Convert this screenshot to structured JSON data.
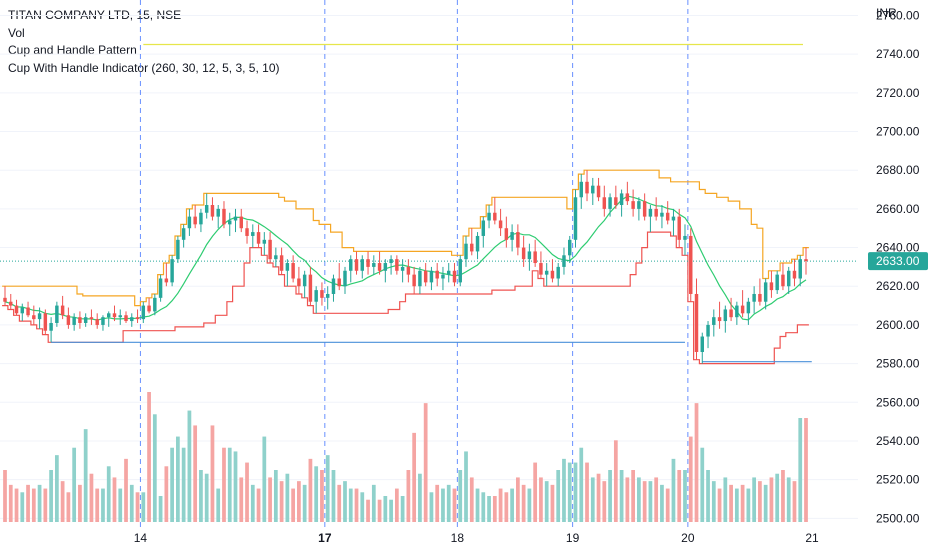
{
  "legend": {
    "symbol": "TITAN COMPANY LTD, 15, NSE",
    "vol": "Vol",
    "pattern": "Cup and Handle Pattern",
    "indicator": "Cup With Handle Indicator (260, 30, 12, 5, 3, 5, 10)"
  },
  "currency": "INR",
  "current_price_label": "2633.00",
  "colors": {
    "up": "#26a69a",
    "down": "#ef5350",
    "vol_up": "#8fd1cb",
    "vol_down": "#f5a5a3",
    "resistance": "#f5a623",
    "support_red": "#ef5350",
    "ma": "#2ecc71",
    "cup_low": "#4a90d9",
    "yellow_line": "#e6e64a",
    "session": "#2962ff"
  },
  "chart_data": {
    "type": "candlestick",
    "y_ticks": [
      "2500.00",
      "2520.00",
      "2540.00",
      "2560.00",
      "2580.00",
      "2600.00",
      "2620.00",
      "2640.00",
      "2660.00",
      "2680.00",
      "2700.00",
      "2720.00",
      "2740.00",
      "2760.00"
    ],
    "y_range": [
      2495,
      2768
    ],
    "x_labels": [
      {
        "label": "14",
        "bold": false
      },
      {
        "label": "17",
        "bold": true
      },
      {
        "label": "18",
        "bold": false
      },
      {
        "label": "19",
        "bold": false
      },
      {
        "label": "20",
        "bold": false
      },
      {
        "label": "21",
        "bold": false
      }
    ],
    "current_price": 2633.0,
    "yellow_level": 2745.0,
    "candles": [
      [
        2614,
        2620,
        2610,
        2612,
        14
      ],
      [
        2612,
        2616,
        2608,
        2610,
        10
      ],
      [
        2610,
        2613,
        2605,
        2606,
        9
      ],
      [
        2606,
        2611,
        2602,
        2609,
        8
      ],
      [
        2609,
        2612,
        2604,
        2605,
        10
      ],
      [
        2605,
        2610,
        2600,
        2603,
        9
      ],
      [
        2603,
        2609,
        2598,
        2606,
        10
      ],
      [
        2606,
        2608,
        2595,
        2597,
        9
      ],
      [
        2597,
        2604,
        2591,
        2601,
        14
      ],
      [
        2601,
        2612,
        2599,
        2610,
        18
      ],
      [
        2610,
        2615,
        2603,
        2605,
        11
      ],
      [
        2605,
        2609,
        2598,
        2600,
        8
      ],
      [
        2600,
        2606,
        2597,
        2604,
        20
      ],
      [
        2604,
        2607,
        2598,
        2601,
        10
      ],
      [
        2601,
        2606,
        2599,
        2604,
        25
      ],
      [
        2604,
        2608,
        2600,
        2603,
        13
      ],
      [
        2603,
        2606,
        2598,
        2600,
        9
      ],
      [
        2600,
        2605,
        2597,
        2604,
        9
      ],
      [
        2604,
        2607,
        2599,
        2606,
        15
      ],
      [
        2606,
        2610,
        2602,
        2604,
        12
      ],
      [
        2604,
        2608,
        2600,
        2605,
        9
      ],
      [
        2605,
        2607,
        2601,
        2602,
        17
      ],
      [
        2602,
        2606,
        2599,
        2604,
        10
      ],
      [
        2604,
        2608,
        2601,
        2603,
        8
      ],
      [
        2603,
        2612,
        2601,
        2610,
        8
      ],
      [
        2610,
        2614,
        2606,
        2607,
        35
      ],
      [
        2607,
        2616,
        2605,
        2614,
        29
      ],
      [
        2614,
        2626,
        2612,
        2624,
        7
      ],
      [
        2624,
        2632,
        2620,
        2622,
        15
      ],
      [
        2622,
        2636,
        2620,
        2634,
        20
      ],
      [
        2634,
        2646,
        2632,
        2644,
        23
      ],
      [
        2644,
        2652,
        2640,
        2650,
        20
      ],
      [
        2650,
        2660,
        2646,
        2656,
        30
      ],
      [
        2656,
        2662,
        2650,
        2652,
        26
      ],
      [
        2652,
        2660,
        2648,
        2658,
        14
      ],
      [
        2658,
        2668,
        2655,
        2662,
        13
      ],
      [
        2662,
        2666,
        2654,
        2656,
        26
      ],
      [
        2656,
        2662,
        2650,
        2660,
        9
      ],
      [
        2660,
        2664,
        2650,
        2652,
        20
      ],
      [
        2652,
        2658,
        2646,
        2654,
        20
      ],
      [
        2654,
        2660,
        2648,
        2656,
        19
      ],
      [
        2656,
        2660,
        2648,
        2650,
        12
      ],
      [
        2650,
        2654,
        2642,
        2646,
        16
      ],
      [
        2646,
        2652,
        2640,
        2648,
        10
      ],
      [
        2648,
        2652,
        2640,
        2642,
        9
      ],
      [
        2642,
        2648,
        2636,
        2644,
        23
      ],
      [
        2644,
        2648,
        2632,
        2634,
        12
      ],
      [
        2634,
        2640,
        2630,
        2636,
        14
      ],
      [
        2636,
        2640,
        2626,
        2628,
        11
      ],
      [
        2628,
        2634,
        2620,
        2632,
        13
      ],
      [
        2632,
        2636,
        2622,
        2624,
        9
      ],
      [
        2624,
        2630,
        2616,
        2620,
        11
      ],
      [
        2620,
        2628,
        2614,
        2626,
        10
      ],
      [
        2626,
        2630,
        2610,
        2612,
        17
      ],
      [
        2612,
        2620,
        2606,
        2618,
        15
      ],
      [
        2618,
        2622,
        2610,
        2614,
        14
      ],
      [
        2614,
        2620,
        2608,
        2616,
        18
      ],
      [
        2616,
        2626,
        2612,
        2624,
        14
      ],
      [
        2624,
        2632,
        2618,
        2620,
        10
      ],
      [
        2620,
        2630,
        2616,
        2628,
        11
      ],
      [
        2628,
        2636,
        2622,
        2634,
        9
      ],
      [
        2634,
        2638,
        2626,
        2628,
        9
      ],
      [
        2628,
        2636,
        2624,
        2634,
        8
      ],
      [
        2634,
        2638,
        2626,
        2630,
        6
      ],
      [
        2630,
        2636,
        2626,
        2632,
        10
      ],
      [
        2632,
        2638,
        2626,
        2628,
        6
      ],
      [
        2628,
        2634,
        2622,
        2632,
        7
      ],
      [
        2632,
        2636,
        2626,
        2634,
        6
      ],
      [
        2634,
        2636,
        2626,
        2628,
        9
      ],
      [
        2628,
        2634,
        2622,
        2630,
        7
      ],
      [
        2630,
        2634,
        2622,
        2626,
        14
      ],
      [
        2626,
        2630,
        2616,
        2620,
        24
      ],
      [
        2620,
        2630,
        2616,
        2628,
        13
      ],
      [
        2628,
        2632,
        2620,
        2622,
        32
      ],
      [
        2622,
        2630,
        2618,
        2628,
        8
      ],
      [
        2628,
        2632,
        2620,
        2624,
        10
      ],
      [
        2624,
        2630,
        2618,
        2626,
        9
      ],
      [
        2626,
        2632,
        2622,
        2628,
        10
      ],
      [
        2628,
        2632,
        2620,
        2622,
        9
      ],
      [
        2622,
        2636,
        2620,
        2634,
        14
      ],
      [
        2634,
        2646,
        2630,
        2642,
        19
      ],
      [
        2642,
        2650,
        2636,
        2638,
        12
      ],
      [
        2638,
        2648,
        2634,
        2646,
        9
      ],
      [
        2646,
        2656,
        2640,
        2654,
        8
      ],
      [
        2654,
        2662,
        2650,
        2658,
        7
      ],
      [
        2658,
        2666,
        2652,
        2654,
        7
      ],
      [
        2654,
        2660,
        2646,
        2650,
        9
      ],
      [
        2650,
        2656,
        2640,
        2644,
        8
      ],
      [
        2644,
        2652,
        2638,
        2648,
        9
      ],
      [
        2648,
        2652,
        2636,
        2640,
        12
      ],
      [
        2640,
        2646,
        2630,
        2634,
        10
      ],
      [
        2634,
        2642,
        2628,
        2638,
        9
      ],
      [
        2638,
        2644,
        2630,
        2632,
        16
      ],
      [
        2632,
        2638,
        2624,
        2626,
        12
      ],
      [
        2626,
        2632,
        2620,
        2628,
        11
      ],
      [
        2628,
        2634,
        2622,
        2624,
        10
      ],
      [
        2624,
        2632,
        2620,
        2630,
        14
      ],
      [
        2630,
        2640,
        2626,
        2636,
        17
      ],
      [
        2636,
        2646,
        2632,
        2644,
        16
      ],
      [
        2644,
        2670,
        2640,
        2666,
        16
      ],
      [
        2666,
        2678,
        2660,
        2674,
        20
      ],
      [
        2674,
        2680,
        2664,
        2668,
        16
      ],
      [
        2668,
        2676,
        2662,
        2672,
        12
      ],
      [
        2672,
        2676,
        2664,
        2666,
        13
      ],
      [
        2666,
        2672,
        2656,
        2660,
        11
      ],
      [
        2660,
        2668,
        2656,
        2666,
        14
      ],
      [
        2666,
        2672,
        2660,
        2662,
        22
      ],
      [
        2662,
        2670,
        2656,
        2668,
        14
      ],
      [
        2668,
        2674,
        2662,
        2664,
        12
      ],
      [
        2664,
        2670,
        2656,
        2660,
        14
      ],
      [
        2660,
        2666,
        2654,
        2664,
        12
      ],
      [
        2664,
        2668,
        2654,
        2656,
        11
      ],
      [
        2656,
        2662,
        2648,
        2660,
        11
      ],
      [
        2660,
        2666,
        2654,
        2656,
        12
      ],
      [
        2656,
        2662,
        2650,
        2658,
        10
      ],
      [
        2658,
        2664,
        2652,
        2654,
        9
      ],
      [
        2654,
        2660,
        2646,
        2656,
        17
      ],
      [
        2656,
        2660,
        2640,
        2644,
        14
      ],
      [
        2644,
        2652,
        2636,
        2646,
        14
      ],
      [
        2646,
        2650,
        2612,
        2616,
        23
      ],
      [
        2616,
        2624,
        2582,
        2586,
        32
      ],
      [
        2586,
        2596,
        2580,
        2594,
        20
      ],
      [
        2594,
        2602,
        2588,
        2600,
        14
      ],
      [
        2600,
        2608,
        2594,
        2604,
        11
      ],
      [
        2604,
        2612,
        2598,
        2602,
        9
      ],
      [
        2602,
        2610,
        2596,
        2608,
        12
      ],
      [
        2608,
        2614,
        2602,
        2604,
        10
      ],
      [
        2604,
        2612,
        2600,
        2610,
        9
      ],
      [
        2610,
        2618,
        2604,
        2606,
        10
      ],
      [
        2606,
        2614,
        2600,
        2612,
        9
      ],
      [
        2612,
        2620,
        2606,
        2616,
        12
      ],
      [
        2616,
        2624,
        2610,
        2612,
        11
      ],
      [
        2612,
        2624,
        2608,
        2622,
        10
      ],
      [
        2622,
        2628,
        2614,
        2618,
        12
      ],
      [
        2618,
        2628,
        2616,
        2626,
        13
      ],
      [
        2626,
        2632,
        2618,
        2620,
        14
      ],
      [
        2620,
        2630,
        2616,
        2628,
        12
      ],
      [
        2628,
        2634,
        2620,
        2624,
        11
      ],
      [
        2624,
        2636,
        2620,
        2634,
        28
      ],
      [
        2634,
        2640,
        2626,
        2633,
        28
      ]
    ]
  }
}
